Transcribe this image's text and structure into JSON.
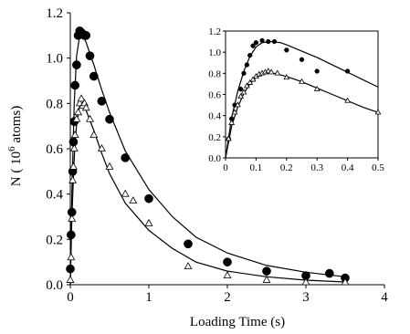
{
  "chart_data": [
    {
      "type": "scatter",
      "role": "main",
      "xlabel": "Loading Time (s)",
      "ylabel_prefix": "N ( 10",
      "ylabel_exp": "6",
      "ylabel_suffix": " atoms)",
      "xlim": [
        0,
        4
      ],
      "ylim": [
        0.0,
        1.2
      ],
      "xticks": [
        0,
        1,
        2,
        3,
        4
      ],
      "xtick_labels": [
        "0",
        "1",
        "2",
        "3",
        "4"
      ],
      "yticks": [
        0.0,
        0.2,
        0.4,
        0.6,
        0.8,
        1.0,
        1.2
      ],
      "ytick_labels": [
        "0.0",
        "0.2",
        "0.4",
        "0.6",
        "0.8",
        "1.0",
        "1.2"
      ],
      "grid": false,
      "series": [
        {
          "marker": "filled-circle",
          "points": [
            [
              0.0,
              0.07
            ],
            [
              0.01,
              0.22
            ],
            [
              0.02,
              0.32
            ],
            [
              0.03,
              0.5
            ],
            [
              0.04,
              0.63
            ],
            [
              0.05,
              0.72
            ],
            [
              0.06,
              0.88
            ],
            [
              0.08,
              0.97
            ],
            [
              0.1,
              1.1
            ],
            [
              0.12,
              1.12
            ],
            [
              0.15,
              1.11
            ],
            [
              0.18,
              1.1
            ],
            [
              0.2,
              1.1
            ],
            [
              0.25,
              1.01
            ],
            [
              0.3,
              0.92
            ],
            [
              0.4,
              0.81
            ],
            [
              0.5,
              0.73
            ],
            [
              0.7,
              0.56
            ],
            [
              1.0,
              0.38
            ],
            [
              1.5,
              0.18
            ],
            [
              2.0,
              0.1
            ],
            [
              2.5,
              0.06
            ],
            [
              3.0,
              0.04
            ],
            [
              3.3,
              0.05
            ],
            [
              3.5,
              0.03
            ]
          ],
          "fit": [
            [
              0,
              0
            ],
            [
              0.02,
              0.4
            ],
            [
              0.05,
              0.8
            ],
            [
              0.08,
              1.01
            ],
            [
              0.12,
              1.1
            ],
            [
              0.16,
              1.1
            ],
            [
              0.2,
              1.07
            ],
            [
              0.3,
              0.97
            ],
            [
              0.4,
              0.86
            ],
            [
              0.5,
              0.76
            ],
            [
              0.7,
              0.59
            ],
            [
              1.0,
              0.42
            ],
            [
              1.3,
              0.3
            ],
            [
              1.6,
              0.21
            ],
            [
              2.0,
              0.14
            ],
            [
              2.5,
              0.085
            ],
            [
              3.0,
              0.055
            ],
            [
              3.5,
              0.035
            ]
          ]
        },
        {
          "marker": "open-triangle",
          "points": [
            [
              0.0,
              0.02
            ],
            [
              0.01,
              0.12
            ],
            [
              0.02,
              0.29
            ],
            [
              0.03,
              0.46
            ],
            [
              0.04,
              0.52
            ],
            [
              0.05,
              0.6
            ],
            [
              0.06,
              0.66
            ],
            [
              0.08,
              0.73
            ],
            [
              0.1,
              0.76
            ],
            [
              0.12,
              0.8
            ],
            [
              0.14,
              0.82
            ],
            [
              0.16,
              0.79
            ],
            [
              0.18,
              0.8
            ],
            [
              0.2,
              0.78
            ],
            [
              0.25,
              0.73
            ],
            [
              0.3,
              0.66
            ],
            [
              0.4,
              0.6
            ],
            [
              0.5,
              0.52
            ],
            [
              0.7,
              0.4
            ],
            [
              0.8,
              0.37
            ],
            [
              1.0,
              0.27
            ],
            [
              1.5,
              0.08
            ],
            [
              2.0,
              0.04
            ],
            [
              2.5,
              0.02
            ],
            [
              3.0,
              0.01
            ],
            [
              3.5,
              0.01
            ]
          ],
          "fit": [
            [
              0,
              0
            ],
            [
              0.02,
              0.3
            ],
            [
              0.05,
              0.56
            ],
            [
              0.08,
              0.71
            ],
            [
              0.12,
              0.79
            ],
            [
              0.15,
              0.8
            ],
            [
              0.2,
              0.77
            ],
            [
              0.3,
              0.68
            ],
            [
              0.4,
              0.58
            ],
            [
              0.5,
              0.49
            ],
            [
              0.7,
              0.36
            ],
            [
              1.0,
              0.24
            ],
            [
              1.3,
              0.16
            ],
            [
              1.6,
              0.1
            ],
            [
              2.0,
              0.06
            ],
            [
              2.5,
              0.035
            ],
            [
              3.0,
              0.02
            ],
            [
              3.5,
              0.012
            ]
          ]
        }
      ]
    },
    {
      "type": "scatter",
      "role": "inset",
      "xlim": [
        0,
        0.5
      ],
      "ylim": [
        0.0,
        1.2
      ],
      "xticks": [
        0,
        0.1,
        0.2,
        0.3,
        0.4,
        0.5
      ],
      "xtick_labels": [
        "0",
        "0.1",
        "0.2",
        "0.3",
        "0.4",
        "0.5"
      ],
      "yticks": [
        0.0,
        0.2,
        0.4,
        0.6,
        0.8,
        1.0,
        1.2
      ],
      "ytick_labels": [
        "0.0",
        "0.2",
        "0.4",
        "0.6",
        "0.8",
        "1.0",
        "1.2"
      ],
      "grid": false,
      "series": [
        {
          "marker": "filled-circle",
          "points": [
            [
              0.01,
              0.18
            ],
            [
              0.02,
              0.37
            ],
            [
              0.03,
              0.5
            ],
            [
              0.05,
              0.65
            ],
            [
              0.06,
              0.8
            ],
            [
              0.07,
              0.88
            ],
            [
              0.08,
              0.97
            ],
            [
              0.09,
              1.06
            ],
            [
              0.1,
              1.09
            ],
            [
              0.12,
              1.11
            ],
            [
              0.14,
              1.1
            ],
            [
              0.16,
              1.1
            ],
            [
              0.2,
              1.02
            ],
            [
              0.25,
              0.93
            ],
            [
              0.3,
              0.82
            ],
            [
              0.4,
              0.82
            ]
          ],
          "fit": [
            [
              0,
              0
            ],
            [
              0.02,
              0.38
            ],
            [
              0.04,
              0.63
            ],
            [
              0.06,
              0.82
            ],
            [
              0.08,
              0.96
            ],
            [
              0.1,
              1.05
            ],
            [
              0.12,
              1.09
            ],
            [
              0.15,
              1.1
            ],
            [
              0.18,
              1.09
            ],
            [
              0.2,
              1.07
            ],
            [
              0.25,
              1.01
            ],
            [
              0.3,
              0.95
            ],
            [
              0.35,
              0.88
            ],
            [
              0.4,
              0.81
            ],
            [
              0.45,
              0.74
            ],
            [
              0.5,
              0.67
            ]
          ]
        },
        {
          "marker": "open-triangle",
          "points": [
            [
              0.01,
              0.18
            ],
            [
              0.02,
              0.33
            ],
            [
              0.03,
              0.43
            ],
            [
              0.04,
              0.5
            ],
            [
              0.05,
              0.58
            ],
            [
              0.06,
              0.62
            ],
            [
              0.07,
              0.68
            ],
            [
              0.08,
              0.71
            ],
            [
              0.09,
              0.74
            ],
            [
              0.1,
              0.77
            ],
            [
              0.11,
              0.79
            ],
            [
              0.12,
              0.8
            ],
            [
              0.13,
              0.81
            ],
            [
              0.14,
              0.82
            ],
            [
              0.15,
              0.81
            ],
            [
              0.17,
              0.8
            ],
            [
              0.2,
              0.76
            ],
            [
              0.25,
              0.72
            ],
            [
              0.3,
              0.65
            ],
            [
              0.4,
              0.54
            ],
            [
              0.5,
              0.43
            ]
          ],
          "fit": [
            [
              0,
              0
            ],
            [
              0.02,
              0.3
            ],
            [
              0.04,
              0.48
            ],
            [
              0.06,
              0.61
            ],
            [
              0.08,
              0.7
            ],
            [
              0.1,
              0.76
            ],
            [
              0.12,
              0.79
            ],
            [
              0.14,
              0.8
            ],
            [
              0.16,
              0.8
            ],
            [
              0.2,
              0.77
            ],
            [
              0.25,
              0.72
            ],
            [
              0.3,
              0.66
            ],
            [
              0.35,
              0.6
            ],
            [
              0.4,
              0.54
            ],
            [
              0.45,
              0.48
            ],
            [
              0.5,
              0.43
            ]
          ]
        }
      ]
    }
  ]
}
